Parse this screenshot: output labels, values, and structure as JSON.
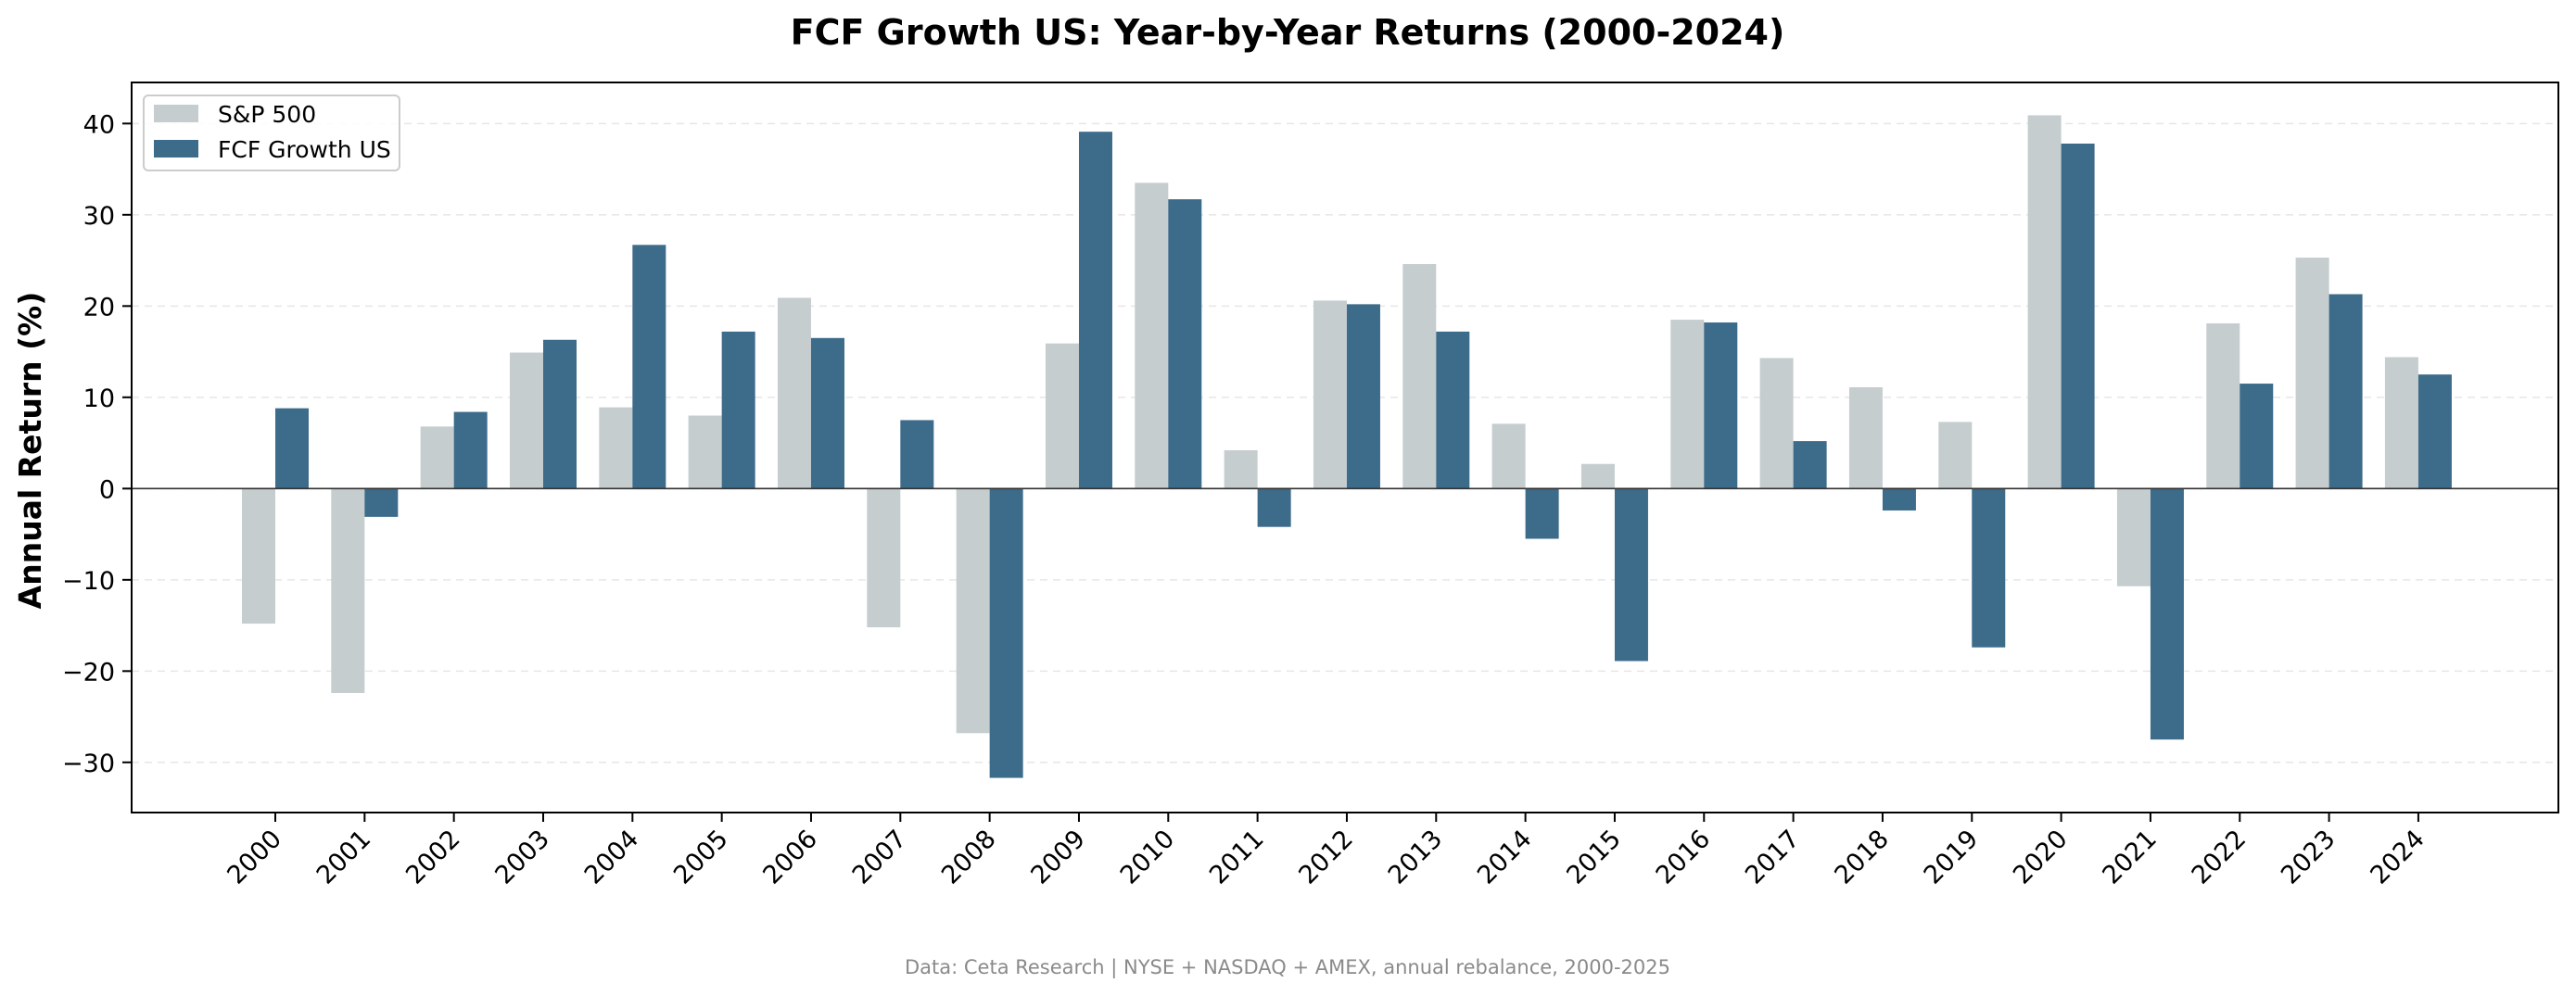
{
  "chart_data": {
    "type": "bar",
    "title": "FCF Growth US: Year-by-Year Returns (2000-2024)",
    "xlabel": "",
    "ylabel": "Annual Return (%)",
    "ylim": [
      -35.5,
      44.5
    ],
    "yticks": [
      -30,
      -20,
      -10,
      0,
      10,
      20,
      30,
      40
    ],
    "ytick_labels": [
      "−30",
      "−20",
      "−10",
      "0",
      "10",
      "20",
      "30",
      "40"
    ],
    "grid": "horizontal dashed",
    "legend_position": "top-left",
    "categories": [
      "2000",
      "2001",
      "2002",
      "2003",
      "2004",
      "2005",
      "2006",
      "2007",
      "2008",
      "2009",
      "2010",
      "2011",
      "2012",
      "2013",
      "2014",
      "2015",
      "2016",
      "2017",
      "2018",
      "2019",
      "2020",
      "2021",
      "2022",
      "2023",
      "2024"
    ],
    "series": [
      {
        "name": "S&P 500",
        "color": "#c5cdcf",
        "values": [
          -14.8,
          -22.4,
          6.8,
          14.9,
          8.9,
          8.0,
          20.9,
          -15.2,
          -26.8,
          15.9,
          33.5,
          4.2,
          20.6,
          24.6,
          7.1,
          2.7,
          18.5,
          14.3,
          11.1,
          7.3,
          40.9,
          -10.7,
          18.1,
          25.3,
          14.4
        ]
      },
      {
        "name": "FCF Growth US",
        "color": "#3d6b8a",
        "values": [
          8.8,
          -3.1,
          8.4,
          16.3,
          26.7,
          17.2,
          16.5,
          7.5,
          -31.7,
          39.1,
          31.7,
          -4.2,
          20.2,
          17.2,
          -5.5,
          -18.9,
          18.2,
          5.2,
          -2.4,
          -17.4,
          37.8,
          -27.5,
          11.5,
          21.3,
          12.5
        ]
      }
    ],
    "footer": "Data: Ceta Research | NYSE + NASDAQ + AMEX, annual rebalance, 2000-2025"
  }
}
